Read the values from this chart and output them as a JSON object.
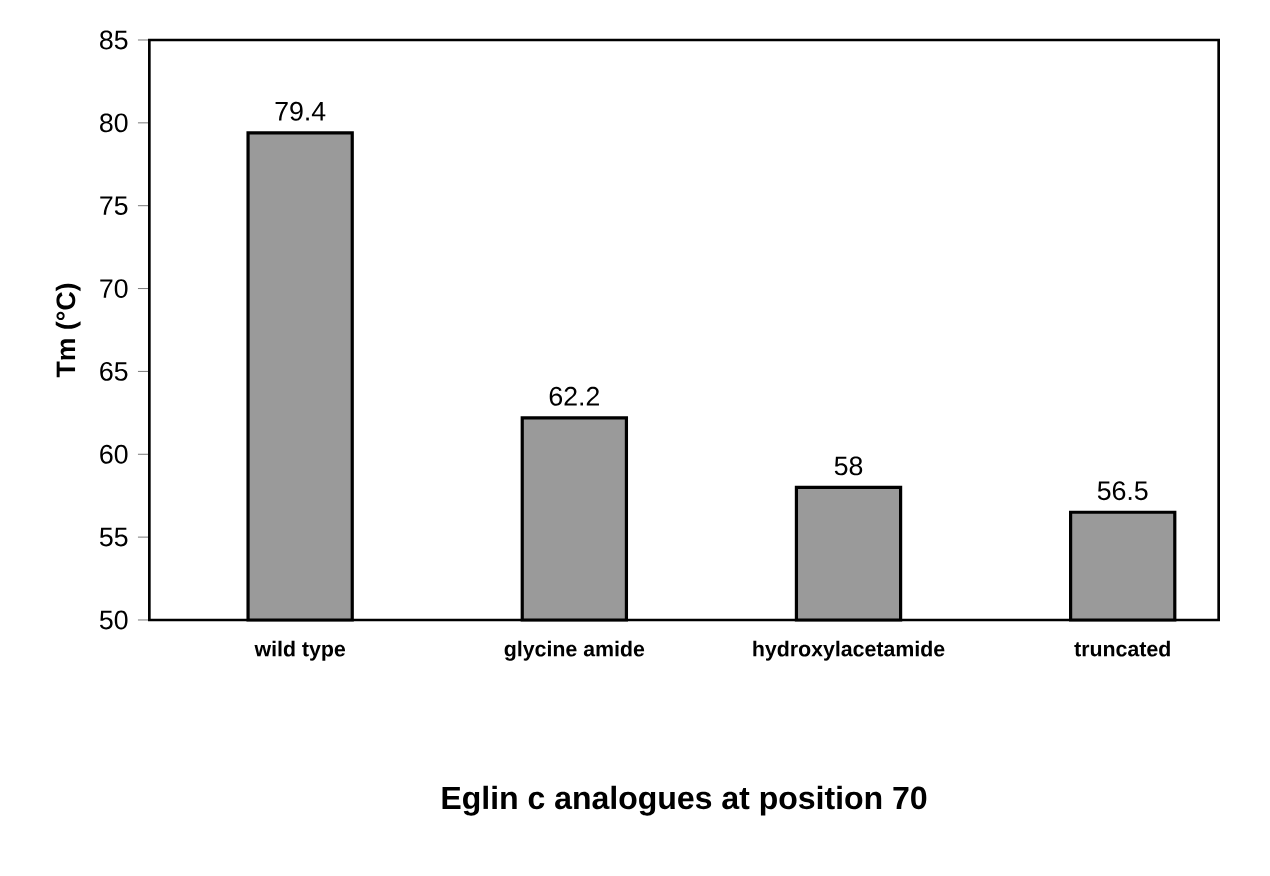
{
  "chart_data": {
    "type": "bar",
    "xlabel": "Eglin c analogues at position 70",
    "ylabel": "Tm (°C)",
    "categories": [
      "wild type",
      "glycine amide",
      "hydroxylacetamide",
      "truncated"
    ],
    "values": [
      79.4,
      62.2,
      58,
      56.5
    ],
    "color": "#9a9a9a",
    "ylim": [
      50,
      85
    ],
    "yticks": [
      50,
      55,
      60,
      65,
      70,
      75,
      80,
      85
    ],
    "grid": false,
    "data_labels": true
  }
}
